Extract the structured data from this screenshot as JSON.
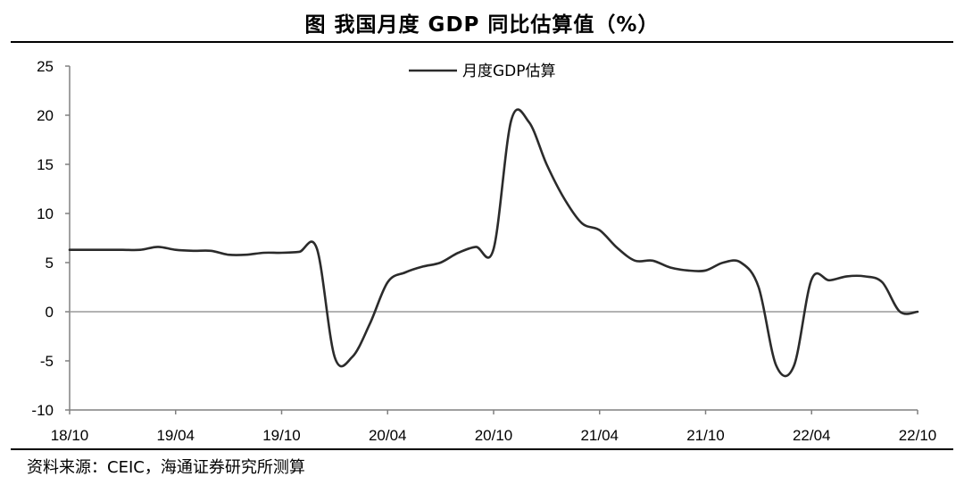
{
  "header": {
    "title": "图  我国月度 GDP 同比估算值（%）"
  },
  "footer": {
    "source": "资料来源：CEIC，海通证券研究所测算"
  },
  "chart_data": {
    "type": "line",
    "title": "图  我国月度 GDP 同比估算值（%）",
    "xlabel": "",
    "ylabel": "",
    "ylim": [
      -10,
      25
    ],
    "yticks": [
      25,
      20,
      15,
      10,
      5,
      0,
      -5,
      -10
    ],
    "xtick_labels": [
      "18/10",
      "19/04",
      "19/10",
      "20/04",
      "20/10",
      "21/04",
      "21/10",
      "22/04",
      "22/10"
    ],
    "x": [
      "18/10",
      "18/11",
      "18/12",
      "19/01",
      "19/02",
      "19/03",
      "19/04",
      "19/05",
      "19/06",
      "19/07",
      "19/08",
      "19/09",
      "19/10",
      "19/11",
      "19/12",
      "20/01",
      "20/02",
      "20/03",
      "20/04",
      "20/05",
      "20/06",
      "20/07",
      "20/08",
      "20/09",
      "20/10",
      "20/11",
      "20/12",
      "21/01",
      "21/02",
      "21/03",
      "21/04",
      "21/05",
      "21/06",
      "21/07",
      "21/08",
      "21/09",
      "21/10",
      "21/11",
      "21/12",
      "22/01",
      "22/02",
      "22/03",
      "22/04",
      "22/05",
      "22/06",
      "22/07",
      "22/08",
      "22/09",
      "22/10"
    ],
    "series": [
      {
        "name": "月度GDP估算",
        "values": [
          6.3,
          6.3,
          6.3,
          6.3,
          6.3,
          6.6,
          6.3,
          6.2,
          6.2,
          5.8,
          5.8,
          6.0,
          6.0,
          6.1,
          6.4,
          -4.6,
          -4.6,
          -1.2,
          3.0,
          4.0,
          4.6,
          5.0,
          6.0,
          6.6,
          6.4,
          19.5,
          19.3,
          15.0,
          11.5,
          9.0,
          8.3,
          6.5,
          5.2,
          5.2,
          4.5,
          4.2,
          4.2,
          5.0,
          5.0,
          2.5,
          -5.5,
          -5.5,
          3.3,
          3.2,
          3.6,
          3.6,
          3.0,
          0,
          0
        ]
      }
    ],
    "legend": {
      "position": "top-center",
      "label": "月度GDP估算"
    }
  }
}
